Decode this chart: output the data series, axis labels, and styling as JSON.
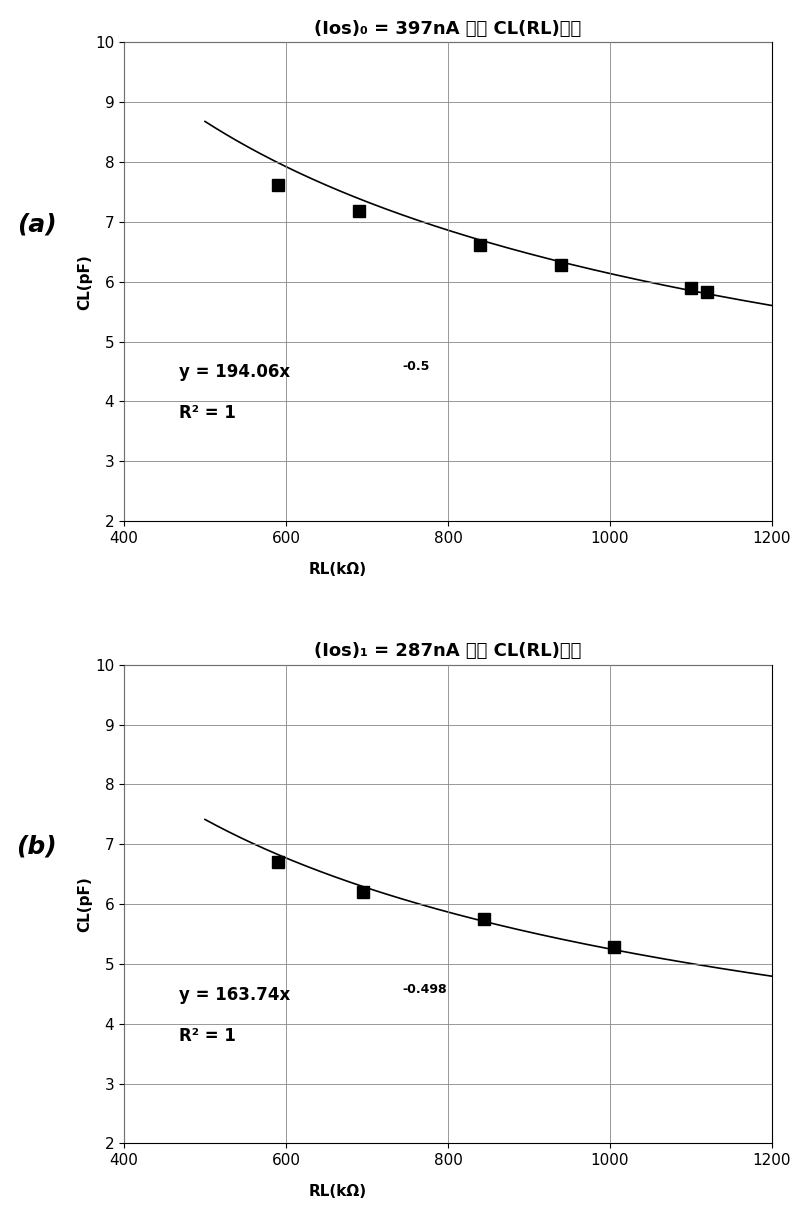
{
  "chart_a": {
    "title": "(Ios)₀ = 397nA 时的 CL(RL)特性",
    "side_label": "(a)",
    "x_data": [
      590,
      690,
      840,
      940,
      1100,
      1120
    ],
    "y_data": [
      7.62,
      7.18,
      6.62,
      6.28,
      5.9,
      5.82
    ],
    "fit_coeff": 194.06,
    "fit_exp": -0.5,
    "eq_line1": "y = 194.06x",
    "eq_exp": "-0.5",
    "eq_line2": "R² = 1"
  },
  "chart_b": {
    "title": "(Ios)₁ = 287nA 时的 CL(RL)特性",
    "side_label": "(b)",
    "x_data": [
      590,
      695,
      845,
      1005
    ],
    "y_data": [
      6.7,
      6.2,
      5.75,
      5.28
    ],
    "fit_coeff": 163.74,
    "fit_exp": -0.498,
    "eq_line1": "y = 163.74x",
    "eq_exp": "-0.498",
    "eq_line2": "R² = 1"
  },
  "xlim": [
    400,
    1200
  ],
  "ylim": [
    2,
    10
  ],
  "xlabel": "RL(kΩ)",
  "ylabel": "CL(pF)",
  "xticks": [
    400,
    600,
    800,
    1000,
    1200
  ],
  "yticks": [
    2,
    3,
    4,
    5,
    6,
    7,
    8,
    9,
    10
  ],
  "title_fontsize": 13,
  "label_fontsize": 11,
  "tick_fontsize": 11,
  "annot_fontsize": 12,
  "annot_exp_fontsize": 9,
  "side_label_fontsize": 18,
  "marker_size": 8,
  "line_width": 1.2,
  "bg_color": "white",
  "line_color": "black",
  "marker_color": "black",
  "grid_color": "#888888"
}
